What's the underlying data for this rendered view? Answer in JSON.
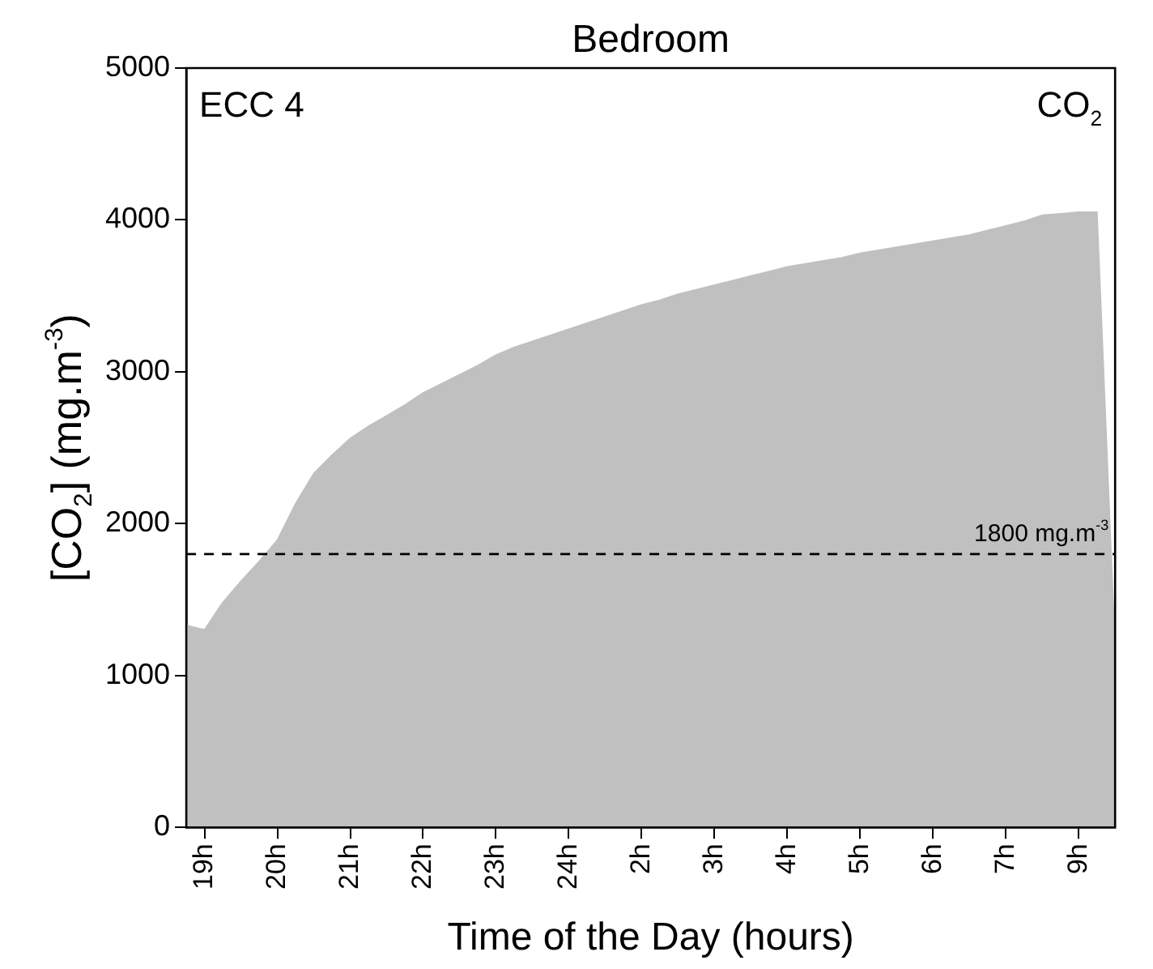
{
  "chart_data": {
    "type": "area",
    "title": "Bedroom",
    "xlabel": "Time of the Day (hours)",
    "ylabel": "[CO$_{2}$] (mg.m$^{-3}$)",
    "annotations": [
      "ECC 4",
      "CO$_{2}$"
    ],
    "categories": [
      null,
      "19h",
      null,
      null,
      null,
      "20h",
      null,
      null,
      null,
      "21h",
      null,
      null,
      null,
      "22h",
      null,
      null,
      null,
      "23h",
      null,
      null,
      null,
      "24h",
      null,
      null,
      null,
      "2h",
      null,
      null,
      null,
      "3h",
      null,
      null,
      null,
      "4h",
      null,
      null,
      null,
      "5h",
      null,
      null,
      null,
      "6h",
      null,
      null,
      null,
      "7h",
      null,
      null,
      null,
      "9h",
      null,
      null
    ],
    "series": [
      {
        "color": "#c0c0c0",
        "values": [
          1330,
          1300,
          1480,
          1620,
          1750,
          1890,
          2130,
          2330,
          2450,
          2560,
          2640,
          2710,
          2780,
          2860,
          2920,
          2980,
          3040,
          3110,
          3160,
          3200,
          3240,
          3280,
          3320,
          3360,
          3400,
          3440,
          3470,
          3510,
          3540,
          3570,
          3600,
          3630,
          3660,
          3690,
          3710,
          3730,
          3750,
          3780,
          3800,
          3820,
          3840,
          3860,
          3880,
          3900,
          3930,
          3960,
          3990,
          4030,
          4040,
          4050,
          4050,
          1150
        ]
      }
    ],
    "ylim": [
      0,
      5000
    ],
    "yticks": [
      0,
      1000,
      2000,
      3000,
      4000,
      5000
    ],
    "ref_lines": [
      {
        "axis": "y",
        "value": 1800,
        "label": "1800 mg.m$^{-3}$",
        "color": "#000000",
        "line_style": "dashed"
      }
    ],
    "grid": false,
    "legend": false
  }
}
